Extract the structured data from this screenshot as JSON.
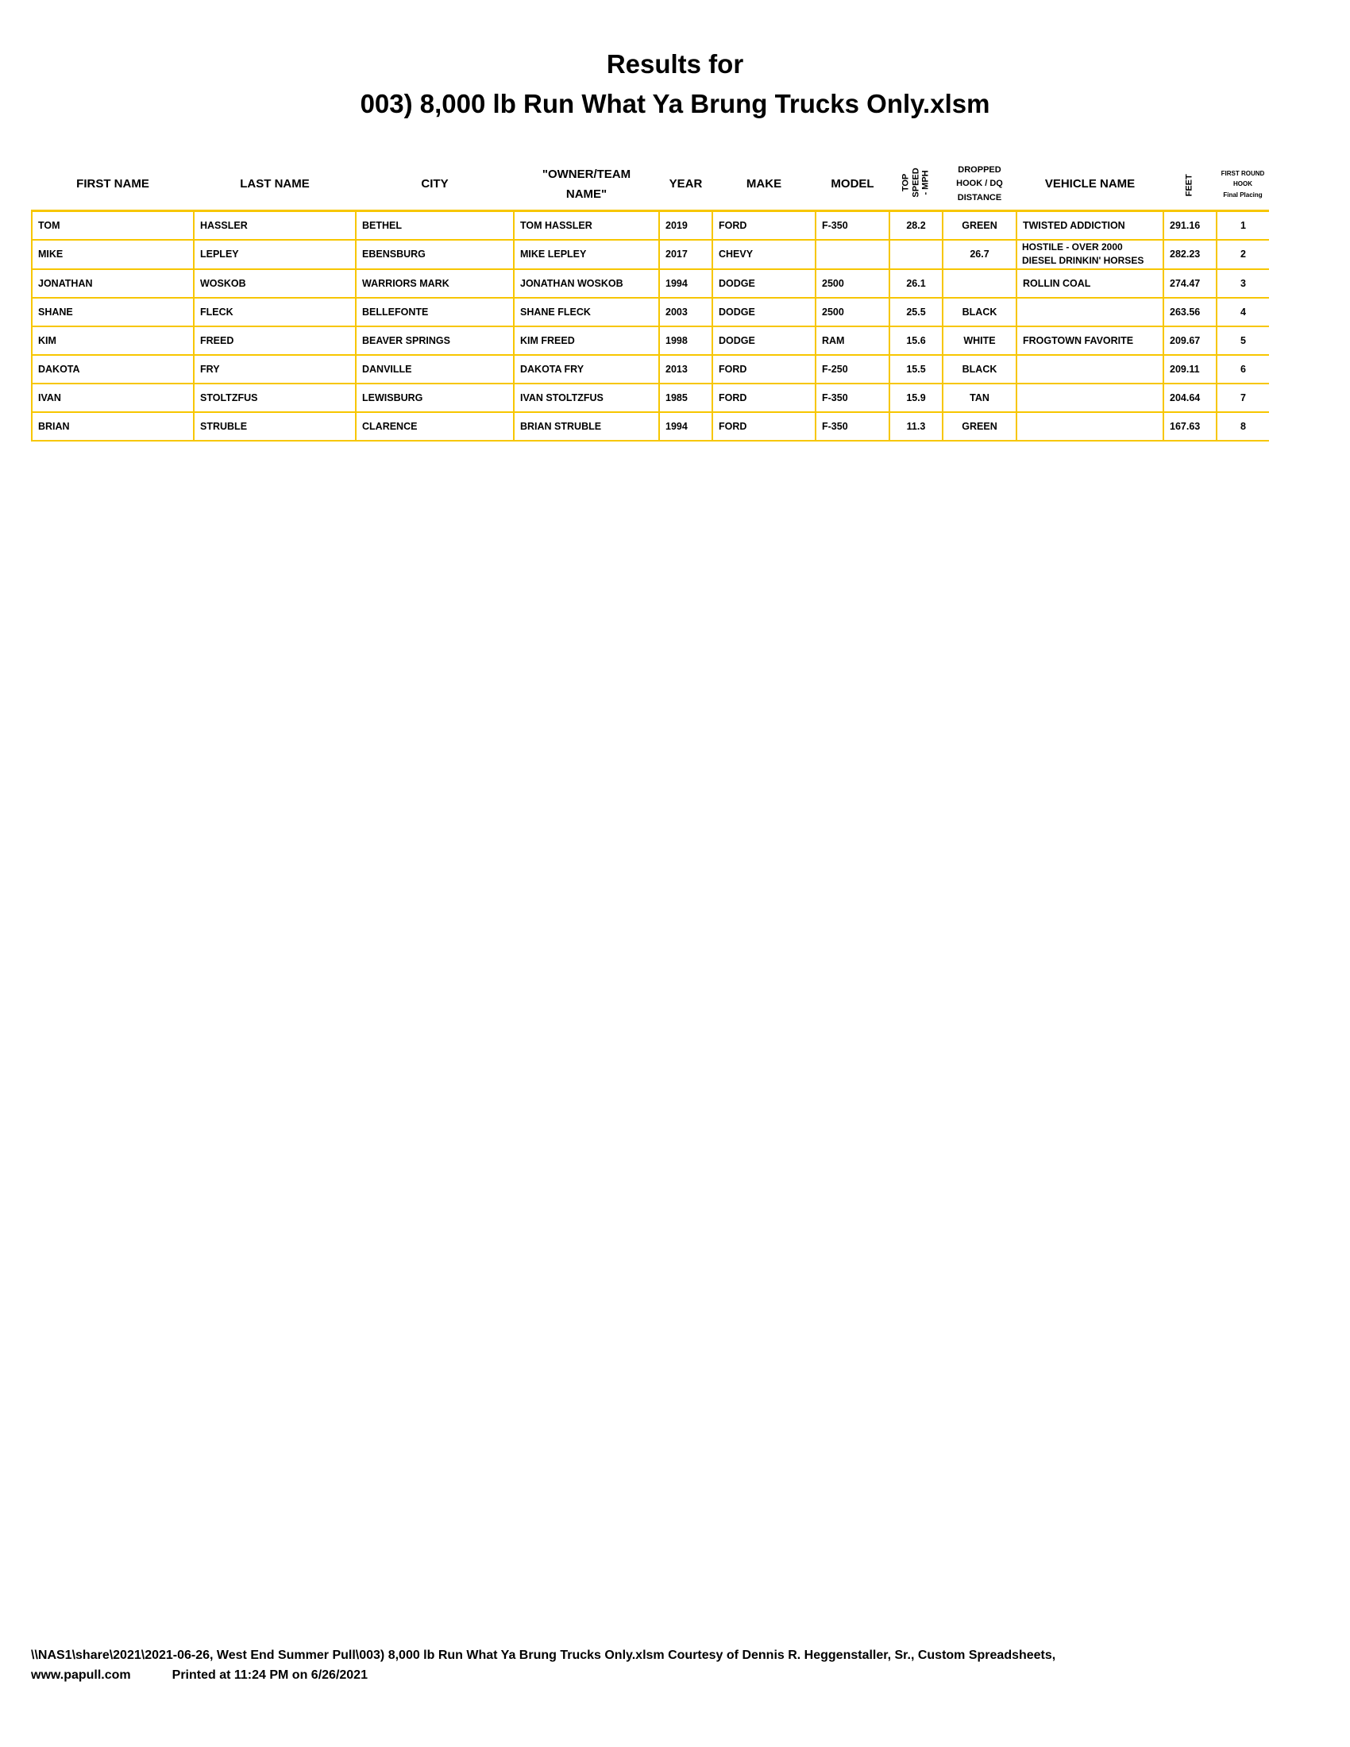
{
  "title_line1": "Results for",
  "title_line2": "003) 8,000 lb Run What Ya Brung Trucks Only.xlsm",
  "columns": {
    "first_name": "FIRST NAME",
    "last_name": "LAST NAME",
    "city": "CITY",
    "owner_1": "\"OWNER/TEAM",
    "owner_2": "NAME\"",
    "year": "YEAR",
    "make": "MAKE",
    "model": "MODEL",
    "speed_1": "TOP",
    "speed_2": "SPEED",
    "speed_3": "- MPH",
    "dropped_1": "DROPPED",
    "dropped_2": "HOOK / DQ",
    "dropped_3": "DISTANCE",
    "vehicle": "VEHICLE NAME",
    "feet": "FEET",
    "placing_1": "FIRST ROUND",
    "placing_2": "HOOK",
    "placing_3": "Final Placing"
  },
  "rows": [
    {
      "first": "TOM",
      "last": "HASSLER",
      "city": "BETHEL",
      "owner": "TOM  HASSLER",
      "year": "2019",
      "make": "FORD",
      "model": "F-350",
      "speed": "28.2",
      "dropped": "GREEN",
      "vehicle": "TWISTED ADDICTION",
      "feet": "291.16",
      "place": "1"
    },
    {
      "first": "MIKE",
      "last": "LEPLEY",
      "city": "EBENSBURG",
      "owner": "MIKE LEPLEY",
      "year": "2017",
      "make": "CHEVY",
      "model": "",
      "speed": "",
      "dropped": "26.7",
      "vehicle": "HOSTILE - OVER 2000 DIESEL DRINKIN' HORSES",
      "feet": "282.23",
      "place": "2"
    },
    {
      "first": "JONATHAN",
      "last": "WOSKOB",
      "city": "WARRIORS MARK",
      "owner": "JONATHAN WOSKOB",
      "year": "1994",
      "make": "DODGE",
      "model": "2500",
      "speed": "26.1",
      "dropped": "",
      "vehicle": "ROLLIN COAL",
      "feet": "274.47",
      "place": "3"
    },
    {
      "first": "SHANE",
      "last": "FLECK",
      "city": "BELLEFONTE",
      "owner": "SHANE FLECK",
      "year": "2003",
      "make": "DODGE",
      "model": "2500",
      "speed": "25.5",
      "dropped": "BLACK",
      "vehicle": "",
      "feet": "263.56",
      "place": "4"
    },
    {
      "first": "KIM",
      "last": "FREED",
      "city": "BEAVER SPRINGS",
      "owner": "KIM FREED",
      "year": "1998",
      "make": "DODGE",
      "model": "RAM",
      "speed": "15.6",
      "dropped": "WHITE",
      "vehicle": "FROGTOWN FAVORITE",
      "feet": "209.67",
      "place": "5"
    },
    {
      "first": "DAKOTA",
      "last": "FRY",
      "city": "DANVILLE",
      "owner": "DAKOTA FRY",
      "year": "2013",
      "make": "FORD",
      "model": "F-250",
      "speed": "15.5",
      "dropped": "BLACK",
      "vehicle": "",
      "feet": "209.11",
      "place": "6"
    },
    {
      "first": "IVAN",
      "last": "STOLTZFUS",
      "city": "LEWISBURG",
      "owner": "IVAN STOLTZFUS",
      "year": "1985",
      "make": "FORD",
      "model": "F-350",
      "speed": "15.9",
      "dropped": "TAN",
      "vehicle": "",
      "feet": "204.64",
      "place": "7"
    },
    {
      "first": "BRIAN",
      "last": "STRUBLE",
      "city": "CLARENCE",
      "owner": "BRIAN STRUBLE",
      "year": "1994",
      "make": "FORD",
      "model": "F-350",
      "speed": "11.3",
      "dropped": "GREEN",
      "vehicle": "",
      "feet": "167.63",
      "place": "8"
    }
  ],
  "footer": {
    "path": "\\\\NAS1\\share\\2021\\2021-06-26, West End Summer Pull\\003) 8,000 lb Run What Ya Brung Trucks Only.xlsm  Courtesy of Dennis R. Heggenstaller, Sr., Custom Spreadsheets,",
    "site": "www.papull.com",
    "printed": "Printed at 11:24 PM on 6/26/2021"
  },
  "colors": {
    "border": "#F7C600"
  }
}
